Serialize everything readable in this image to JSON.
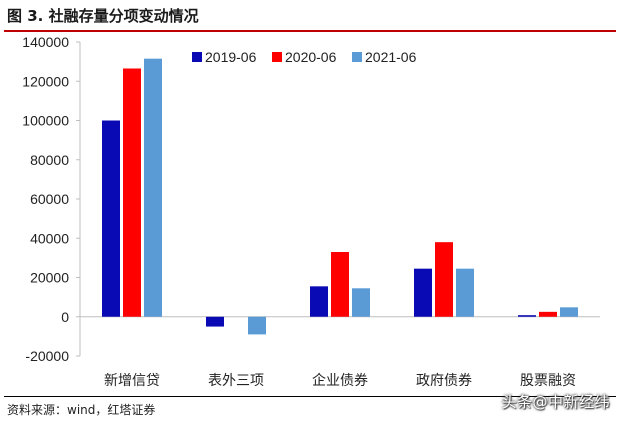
{
  "figure": {
    "title": "图 3. 社融存量分项变动情况",
    "source": "资料来源：wind，红塔证券",
    "watermark": "头条@中新经纬"
  },
  "chart_data": {
    "type": "bar",
    "categories": [
      "新增信贷",
      "表外三项",
      "企业债券",
      "政府债券",
      "股票融资"
    ],
    "series": [
      {
        "name": "2019-06",
        "color": "#0a0ab4",
        "values": [
          100000,
          -5000,
          15500,
          24500,
          800
        ]
      },
      {
        "name": "2020-06",
        "color": "#ff0000",
        "values": [
          126500,
          0,
          33000,
          38000,
          2500
        ]
      },
      {
        "name": "2021-06",
        "color": "#5b9bd5",
        "values": [
          131500,
          -9000,
          14500,
          24500,
          4800
        ]
      }
    ],
    "yticks": [
      -20000,
      0,
      20000,
      40000,
      60000,
      80000,
      100000,
      120000,
      140000
    ],
    "ylim": [
      -20000,
      140000
    ],
    "legend_position": "top-center",
    "grid": false
  }
}
